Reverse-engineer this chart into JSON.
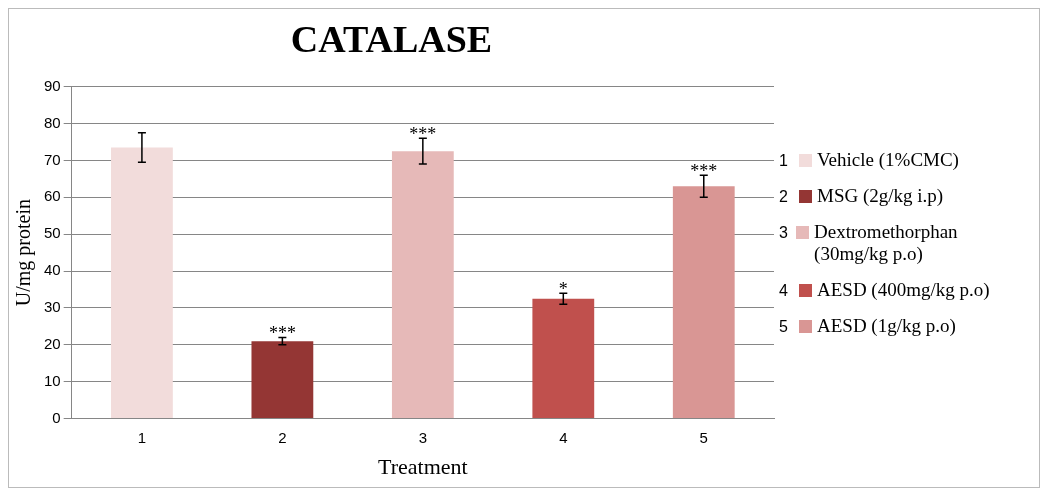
{
  "chart_data": {
    "type": "bar",
    "title": "CATALASE",
    "xlabel": "Treatment",
    "ylabel": "U/mg protein",
    "categories": [
      "1",
      "2",
      "3",
      "4",
      "5"
    ],
    "series": [
      {
        "name": "Vehicle (1%CMC)",
        "color": "#f2dcdb",
        "values": [
          73.5,
          null,
          null,
          null,
          null
        ],
        "errors": [
          4,
          null,
          null,
          null,
          null
        ]
      },
      {
        "name": "MSG (2g/kg i.p)",
        "color": "#943634",
        "values": [
          null,
          21,
          null,
          null,
          null
        ],
        "errors": [
          null,
          1,
          null,
          null,
          null
        ]
      },
      {
        "name": "Dextromethorphan (30mg/kg p.o)",
        "color": "#e6b9b8",
        "values": [
          null,
          null,
          72.5,
          null,
          null
        ],
        "errors": [
          null,
          null,
          3.5,
          null,
          null
        ]
      },
      {
        "name": "AESD (400mg/kg p.o)",
        "color": "#c0504d",
        "values": [
          null,
          null,
          null,
          32.5,
          null
        ],
        "errors": [
          null,
          null,
          null,
          1.5,
          null
        ]
      },
      {
        "name": "AESD (1g/kg p.o)",
        "color": "#d99694",
        "values": [
          null,
          null,
          null,
          null,
          63
        ],
        "errors": [
          null,
          null,
          null,
          null,
          3
        ]
      }
    ],
    "annotations": [
      {
        "text": "***",
        "x": "2",
        "y": 22
      },
      {
        "text": "***",
        "x": "3",
        "y": 76
      },
      {
        "text": "*",
        "x": "4",
        "y": 34
      },
      {
        "text": "***",
        "x": "5",
        "y": 66
      }
    ],
    "ylim": [
      0,
      90
    ],
    "yticks": [
      0,
      10,
      20,
      30,
      40,
      50,
      60,
      70,
      80,
      90
    ],
    "grid": "y",
    "legend": "right"
  }
}
